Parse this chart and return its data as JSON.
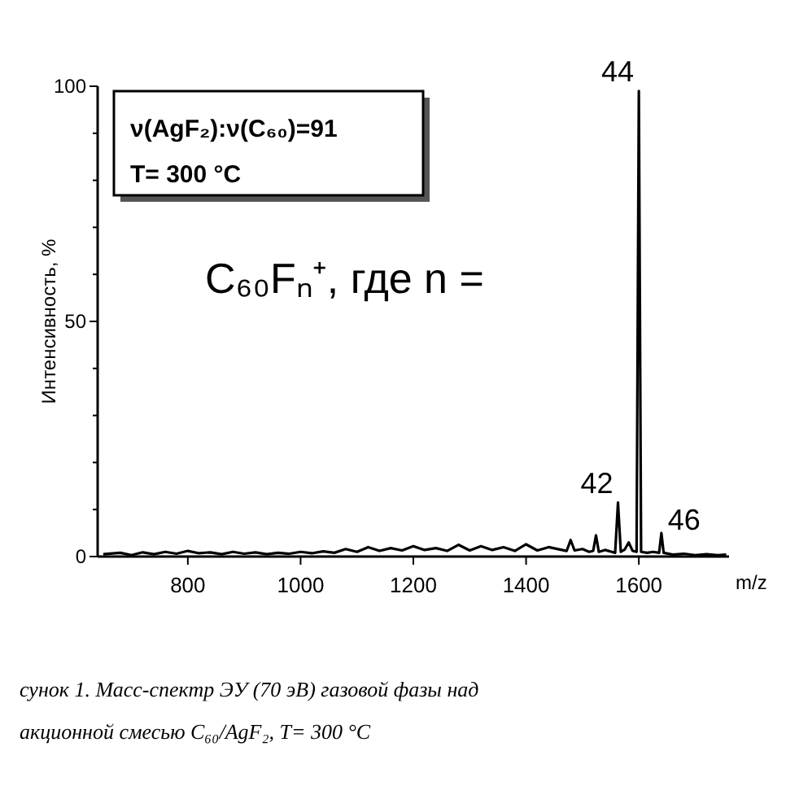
{
  "chart_data": {
    "type": "line",
    "ylabel": "Интенсивность, %",
    "xlabel": "m/z",
    "xlim": [
      640,
      1760
    ],
    "xticks": [
      800,
      1000,
      1200,
      1400,
      1600
    ],
    "ylim": [
      0,
      100
    ],
    "yticks": [
      0,
      {
        "value": 10,
        "label": null
      },
      {
        "value": 20,
        "label": null
      },
      {
        "value": 30,
        "label": null
      },
      {
        "value": 40,
        "label": null
      },
      50,
      {
        "value": 60,
        "label": null
      },
      {
        "value": 70,
        "label": null
      },
      {
        "value": 80,
        "label": null
      },
      {
        "value": 90,
        "label": null
      },
      100
    ],
    "grid": false,
    "marker": "none",
    "line_style": "solid",
    "series": [
      {
        "color": "#000000",
        "x": [
          650,
          680,
          700,
          720,
          740,
          760,
          780,
          800,
          820,
          840,
          860,
          880,
          900,
          920,
          940,
          960,
          980,
          1000,
          1020,
          1040,
          1060,
          1080,
          1100,
          1120,
          1140,
          1160,
          1180,
          1200,
          1220,
          1240,
          1260,
          1280,
          1300,
          1320,
          1340,
          1360,
          1380,
          1400,
          1420,
          1440,
          1460,
          1472,
          1479,
          1486,
          1500,
          1512,
          1519,
          1524,
          1529,
          1540,
          1552,
          1558,
          1563,
          1568,
          1575,
          1582,
          1589,
          1596,
          1600,
          1604,
          1615,
          1625,
          1636,
          1640,
          1644,
          1660,
          1680,
          1700,
          1720,
          1740,
          1755
        ],
        "values": [
          0.5,
          0.8,
          0.3,
          0.9,
          0.5,
          1.0,
          0.6,
          1.2,
          0.7,
          0.9,
          0.5,
          1.0,
          0.6,
          0.9,
          0.5,
          0.8,
          0.6,
          1.0,
          0.7,
          1.1,
          0.8,
          1.6,
          1.0,
          2.0,
          1.2,
          1.8,
          1.3,
          2.2,
          1.4,
          1.8,
          1.2,
          2.5,
          1.3,
          2.2,
          1.4,
          2.0,
          1.2,
          2.6,
          1.3,
          2.0,
          1.5,
          1.2,
          3.5,
          1.3,
          1.6,
          1.0,
          1.2,
          4.5,
          1.0,
          1.4,
          1.0,
          0.8,
          11.5,
          1.0,
          1.5,
          3.0,
          1.2,
          1.0,
          99,
          1.0,
          0.8,
          1.0,
          0.8,
          5.0,
          0.8,
          0.4,
          0.6,
          0.3,
          0.5,
          0.3,
          0.4
        ]
      }
    ],
    "annotations": [
      "ν(AgF₂):ν(C₆₀)=91",
      "T= 300 °C",
      "C₆₀Fₙ⁺, где n =",
      {
        "text": "42",
        "x": 1563,
        "y": 11.5
      },
      {
        "text": "44",
        "x": 1600,
        "y": 99
      },
      {
        "text": "46",
        "x": 1640,
        "y": 5.0
      },
      "сунок 1. Масс-спектр ЭУ (70 эВ) газовой фазы над",
      "акционной смесью C₆₀/AgF₂, T= 300 °C"
    ]
  }
}
